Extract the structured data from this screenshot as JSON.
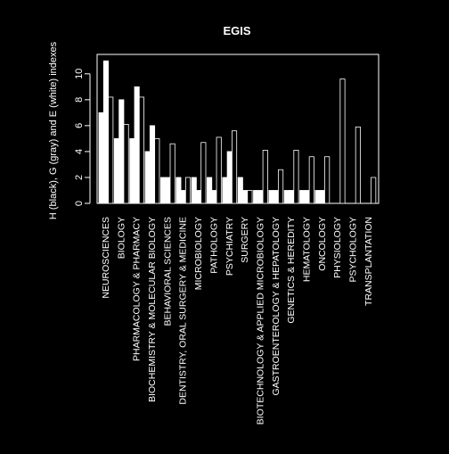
{
  "chart_data": {
    "type": "bar",
    "title": "EGIS",
    "xlabel": "",
    "ylabel": "H (black), G (gray) and E (white) indexes",
    "ylim": [
      0,
      11.5
    ],
    "yticks": [
      0,
      2,
      4,
      6,
      8,
      10
    ],
    "grid": false,
    "legend": "none",
    "colors": {
      "background": "#000000",
      "bar_fill": "#ffffff",
      "bar_border": "#ffffff",
      "axis": "#ffffff",
      "text": "#ffffff"
    },
    "categories": [
      "NEUROSCIENCES",
      "BIOLOGY",
      "PHARMACOLOGY & PHARMACY",
      "BIOCHEMISTRY & MOLECULAR BIOLOGY",
      "BEHAVIORAL SCIENCES",
      "DENTISTRY, ORAL SURGERY & MEDICINE",
      "MICROBIOLOGY",
      "PATHOLOGY",
      "PSYCHIATRY",
      "SURGERY",
      "BIOTECHNOLOGY & APPLIED MICROBIOLOGY",
      "GASTROENTEROLOGY & HEPATOLOGY",
      "GENETICS & HEREDITY",
      "HEMATOLOGY",
      "ONCOLOGY",
      "PHYSIOLOGY",
      "PSYCHOLOGY",
      "TRANSPLANTATION"
    ],
    "series": [
      {
        "values": [
          7,
          5,
          5,
          4,
          2,
          2,
          2,
          2,
          2,
          2,
          1,
          1,
          1,
          1,
          1,
          0,
          0,
          0
        ]
      },
      {
        "values": [
          11,
          8,
          9,
          6,
          2,
          1,
          1,
          1,
          4,
          1,
          1,
          1,
          1,
          1,
          1,
          0,
          0,
          0
        ]
      },
      {
        "values": [
          8.2,
          6.1,
          8.2,
          5.0,
          4.6,
          2.0,
          4.7,
          5.1,
          5.6,
          1.0,
          4.1,
          2.6,
          4.1,
          3.6,
          3.6,
          9.6,
          5.9,
          2.0
        ]
      }
    ]
  }
}
